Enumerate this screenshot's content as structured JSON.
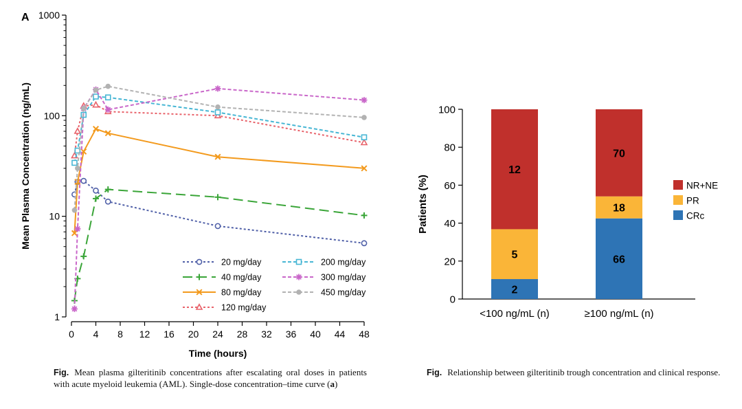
{
  "chart_data": [
    {
      "type": "line",
      "panel_label": "A",
      "title": "",
      "xlabel": "Time (hours)",
      "ylabel": "Mean Plasma Concentration (ng/mL)",
      "yscale": "log",
      "xlim": [
        0,
        48
      ],
      "ylim": [
        1,
        1000
      ],
      "xticks": [
        0,
        4,
        8,
        12,
        16,
        20,
        24,
        28,
        32,
        36,
        40,
        44,
        48
      ],
      "yticks": [
        1,
        10,
        100,
        1000
      ],
      "ytick_labels": [
        "1",
        "10",
        "100",
        "1000"
      ],
      "legend_position": "bottom-right",
      "series": [
        {
          "name": "20 mg/day",
          "color": "#5060a8",
          "dash": "short",
          "marker": "circle",
          "x": [
            0.5,
            1,
            2,
            4,
            6,
            24,
            48
          ],
          "y": [
            16.5,
            22,
            22.5,
            18,
            14,
            8,
            5.4
          ]
        },
        {
          "name": "40 mg/day",
          "color": "#3aa538",
          "dash": "long",
          "marker": "plus",
          "x": [
            0.5,
            1,
            2,
            4,
            6,
            24,
            48
          ],
          "y": [
            1.45,
            2.4,
            4,
            15,
            18.5,
            15.5,
            10.2
          ]
        },
        {
          "name": "80 mg/day",
          "color": "#f39a1d",
          "dash": "solid",
          "marker": "x",
          "x": [
            0.5,
            1,
            2,
            4,
            6,
            24,
            48
          ],
          "y": [
            6.8,
            22,
            44,
            74,
            67,
            39,
            30
          ]
        },
        {
          "name": "120 mg/day",
          "color": "#e8626a",
          "dash": "short",
          "marker": "triangle",
          "x": [
            0.5,
            1,
            2,
            4,
            6,
            24,
            48
          ],
          "y": [
            40,
            70,
            125,
            128,
            110,
            100,
            54
          ]
        },
        {
          "name": "200 mg/day",
          "color": "#47b6d4",
          "dash": "medium",
          "marker": "square",
          "x": [
            0.5,
            1,
            2,
            4,
            6,
            24,
            48
          ],
          "y": [
            34,
            45,
            102,
            155,
            152,
            108,
            61
          ]
        },
        {
          "name": "300 mg/day",
          "color": "#c966c9",
          "dash": "medium",
          "marker": "asterisk",
          "x": [
            0.5,
            1,
            2,
            4,
            6,
            24,
            48
          ],
          "y": [
            1.2,
            7.5,
            118,
            182,
            115,
            186,
            143
          ]
        },
        {
          "name": "450 mg/day",
          "color": "#b2b2b2",
          "dash": "medium",
          "marker": "dot",
          "x": [
            0.5,
            1,
            2,
            4,
            6,
            24,
            48
          ],
          "y": [
            11.5,
            30,
            118,
            180,
            196,
            122,
            96
          ]
        }
      ]
    },
    {
      "type": "bar",
      "stacked": true,
      "title": "",
      "xlabel": "",
      "ylabel": "Patients (%)",
      "ylim": [
        0,
        100
      ],
      "yticks": [
        0,
        20,
        40,
        60,
        80,
        100
      ],
      "categories": [
        "<100 ng/mL (n)",
        "≥100 ng/mL (n)"
      ],
      "legend_position": "right",
      "series": [
        {
          "name": "CRc",
          "color": "#2e74b5",
          "values": [
            10.5,
            42.5
          ],
          "labels": [
            "2",
            "66"
          ]
        },
        {
          "name": "PR",
          "color": "#fab538",
          "values": [
            26.3,
            11.6
          ],
          "labels": [
            "5",
            "18"
          ]
        },
        {
          "name": "NR+NE",
          "color": "#c0302c",
          "values": [
            63.2,
            45.9
          ],
          "labels": [
            "12",
            "70"
          ]
        }
      ],
      "legend_order": [
        "NR+NE",
        "PR",
        "CRc"
      ]
    }
  ],
  "captions": {
    "left": {
      "fig": "Fig.",
      "text": "Mean plasma gilteritinib concentrations after escalating oral doses in patients with acute myeloid leukemia (AML). Single-dose concentration–time curve (",
      "bold": "a",
      "end": ")"
    },
    "right": {
      "fig": "Fig.",
      "text": "Relationship between gilteritinib trough concentration and clinical response."
    }
  }
}
